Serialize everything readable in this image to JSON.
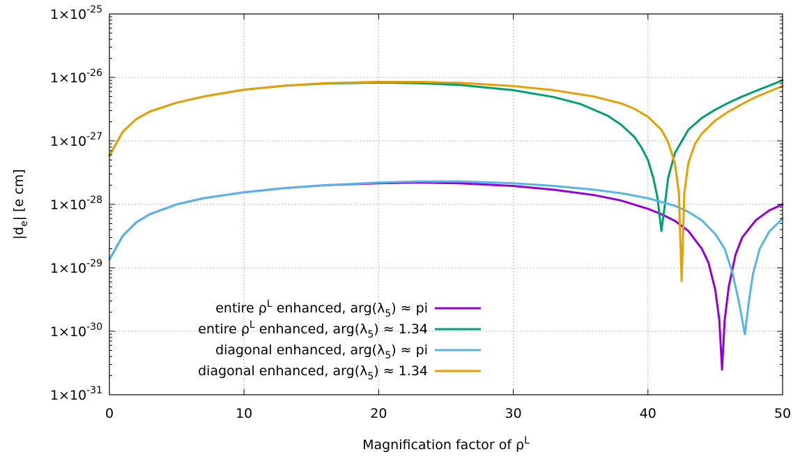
{
  "chart_data": {
    "type": "line",
    "title": "",
    "xlabel": "Magnification factor of ρ",
    "xlabel_sup": "L",
    "ylabel": "|d",
    "ylabel_sub": "e",
    "ylabel_tail": "| [e cm]",
    "xlim": [
      0,
      50
    ],
    "ylim_log10": [
      -31,
      -25
    ],
    "yscale": "log",
    "grid": true,
    "legend_placement": "bottom-left",
    "x_ticks": [
      {
        "value": 0,
        "label": "0"
      },
      {
        "value": 10,
        "label": "10"
      },
      {
        "value": 20,
        "label": "20"
      },
      {
        "value": 30,
        "label": "30"
      },
      {
        "value": 40,
        "label": "40"
      },
      {
        "value": 50,
        "label": "50"
      }
    ],
    "y_ticks": [
      {
        "value_log10": -25,
        "mantissa": "1×10",
        "exponent": "-25"
      },
      {
        "value_log10": -26,
        "mantissa": "1×10",
        "exponent": "-26"
      },
      {
        "value_log10": -27,
        "mantissa": "1×10",
        "exponent": "-27"
      },
      {
        "value_log10": -28,
        "mantissa": "1×10",
        "exponent": "-28"
      },
      {
        "value_log10": -29,
        "mantissa": "1×10",
        "exponent": "-29"
      },
      {
        "value_log10": -30,
        "mantissa": "1×10",
        "exponent": "-30"
      },
      {
        "value_log10": -31,
        "mantissa": "1×10",
        "exponent": "-31"
      }
    ],
    "series": [
      {
        "legend": {
          "pre": "entire ρ",
          "sup": "L",
          "mid": " enhanced, arg(λ",
          "sub": "5",
          "post": ") ≈ pi"
        },
        "color": "#9400d3",
        "x": [
          0,
          1,
          2,
          3,
          5,
          7,
          10,
          13,
          16,
          20,
          23,
          26,
          30,
          33,
          36,
          38,
          40,
          41,
          42,
          43,
          44,
          44.5,
          45,
          45.3,
          45.5,
          45.7,
          46,
          46.5,
          47,
          48,
          49,
          50
        ],
        "y": [
          1.35e-29,
          3.2e-29,
          5.2e-29,
          7e-29,
          1e-28,
          1.25e-28,
          1.55e-28,
          1.8e-28,
          2e-28,
          2.15e-28,
          2.2e-28,
          2.15e-28,
          1.95e-28,
          1.7e-28,
          1.4e-28,
          1.15e-28,
          8.5e-29,
          7e-29,
          5.5e-29,
          3.8e-29,
          2e-29,
          1.2e-29,
          4.5e-30,
          1.5e-30,
          2.5e-31,
          1.5e-30,
          5e-30,
          1.6e-29,
          3e-29,
          5.6e-29,
          8e-29,
          1e-28
        ]
      },
      {
        "legend": {
          "pre": "entire ρ",
          "sup": "L",
          "mid": " enhanced, arg(λ",
          "sub": "5",
          "post": ") ≈ 1.34"
        },
        "color": "#009e73",
        "x": [
          0,
          1,
          2,
          3,
          5,
          7,
          10,
          13,
          16,
          20,
          23,
          26,
          30,
          33,
          35,
          37,
          38,
          39,
          39.5,
          40,
          40.4,
          40.7,
          41,
          41.2,
          41.5,
          42,
          43,
          44,
          45,
          46,
          47,
          48,
          49,
          50
        ],
        "y": [
          5.8e-28,
          1.4e-27,
          2.2e-27,
          2.9e-27,
          4e-27,
          5e-27,
          6.4e-27,
          7.4e-27,
          8e-27,
          8.3e-27,
          8.1e-27,
          7.6e-27,
          6.3e-27,
          4.9e-27,
          3.8e-27,
          2.5e-27,
          1.8e-27,
          1.15e-27,
          8e-28,
          5e-28,
          2.6e-28,
          1.3e-28,
          3.8e-29,
          8e-29,
          2.6e-28,
          6.4e-28,
          1.5e-27,
          2.3e-27,
          3.1e-27,
          4e-27,
          5e-27,
          6.1e-27,
          7.4e-27,
          9e-27
        ]
      },
      {
        "legend": {
          "pre": "diagonal enhanced, arg(λ",
          "sup": "",
          "mid": "",
          "sub": "5",
          "post": ") ≈ pi"
        },
        "color": "#56b4e9",
        "x": [
          0,
          1,
          2,
          3,
          5,
          7,
          10,
          13,
          16,
          20,
          23,
          26,
          30,
          33,
          36,
          38,
          40,
          42,
          43,
          44,
          45,
          45.7,
          46.3,
          46.8,
          47.2,
          47.5,
          47.8,
          48.3,
          49,
          50
        ],
        "y": [
          1.35e-29,
          3.2e-29,
          5.2e-29,
          7e-29,
          1e-28,
          1.25e-28,
          1.55e-28,
          1.8e-28,
          2e-28,
          2.2e-28,
          2.3e-28,
          2.3e-28,
          2.15e-28,
          1.95e-28,
          1.7e-28,
          1.5e-28,
          1.25e-28,
          9.5e-29,
          7.6e-29,
          5.6e-29,
          3.4e-29,
          2e-29,
          8e-30,
          2.6e-30,
          9e-31,
          3e-30,
          8e-30,
          2e-29,
          3.7e-29,
          6e-29
        ]
      },
      {
        "legend": {
          "pre": "diagonal enhanced, arg(λ",
          "sup": "",
          "mid": "",
          "sub": "5",
          "post": ") ≈ 1.34"
        },
        "color": "#e69f00",
        "x": [
          0,
          1,
          2,
          3,
          5,
          7,
          10,
          13,
          16,
          20,
          23,
          26,
          30,
          33,
          36,
          38,
          39,
          40,
          41,
          41.5,
          42,
          42.3,
          42.5,
          42.7,
          43,
          43.5,
          44,
          45,
          46,
          47,
          48,
          49,
          50
        ],
        "y": [
          5.8e-28,
          1.4e-27,
          2.2e-27,
          2.9e-27,
          4e-27,
          5e-27,
          6.4e-27,
          7.4e-27,
          8.1e-27,
          8.5e-27,
          8.5e-27,
          8.2e-27,
          7.3e-27,
          6.3e-27,
          5e-27,
          3.9e-27,
          3.2e-27,
          2.4e-27,
          1.5e-27,
          9.5e-28,
          4.5e-28,
          1.5e-28,
          6.2e-30,
          1.5e-28,
          4.5e-28,
          9e-28,
          1.3e-27,
          2.1e-27,
          2.9e-27,
          3.8e-27,
          4.9e-27,
          6e-27,
          7.3e-27
        ]
      }
    ]
  }
}
